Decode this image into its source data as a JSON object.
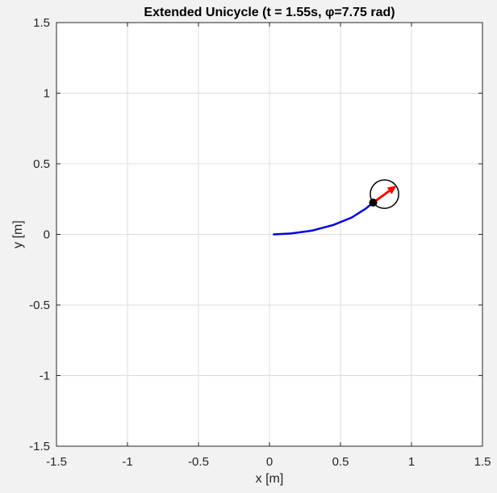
{
  "chart_data": {
    "type": "line",
    "title": "Extended Unicycle (t = 1.55s, φ=7.75 rad)",
    "xlabel": "x [m]",
    "ylabel": "y [m]",
    "xlim": [
      -1.5,
      1.5
    ],
    "ylim": [
      -1.5,
      1.5
    ],
    "xticks": [
      -1.5,
      -1,
      -0.5,
      0,
      0.5,
      1,
      1.5
    ],
    "yticks": [
      -1.5,
      -1,
      -0.5,
      0,
      0.5,
      1,
      1.5
    ],
    "xtick_labels": [
      "-1.5",
      "-1",
      "-0.5",
      "0",
      "0.5",
      "1",
      "1.5"
    ],
    "ytick_labels": [
      "-1.5",
      "-1",
      "-0.5",
      "0",
      "0.5",
      "1",
      "1.5"
    ],
    "grid": true,
    "series": [
      {
        "color": "#0000dd",
        "x": [
          0.03,
          0.15,
          0.3,
          0.45,
          0.58,
          0.68,
          0.73
        ],
        "y": [
          0.0,
          0.006,
          0.027,
          0.067,
          0.12,
          0.184,
          0.225
        ]
      }
    ],
    "robot": {
      "position": [
        0.73,
        0.225
      ],
      "body_center": [
        0.81,
        0.285
      ],
      "body_radius": 0.1,
      "heading_end": [
        0.895,
        0.345
      ],
      "position_color": "#000000",
      "body_color": "#000000",
      "heading_color": "#ff0000"
    }
  }
}
